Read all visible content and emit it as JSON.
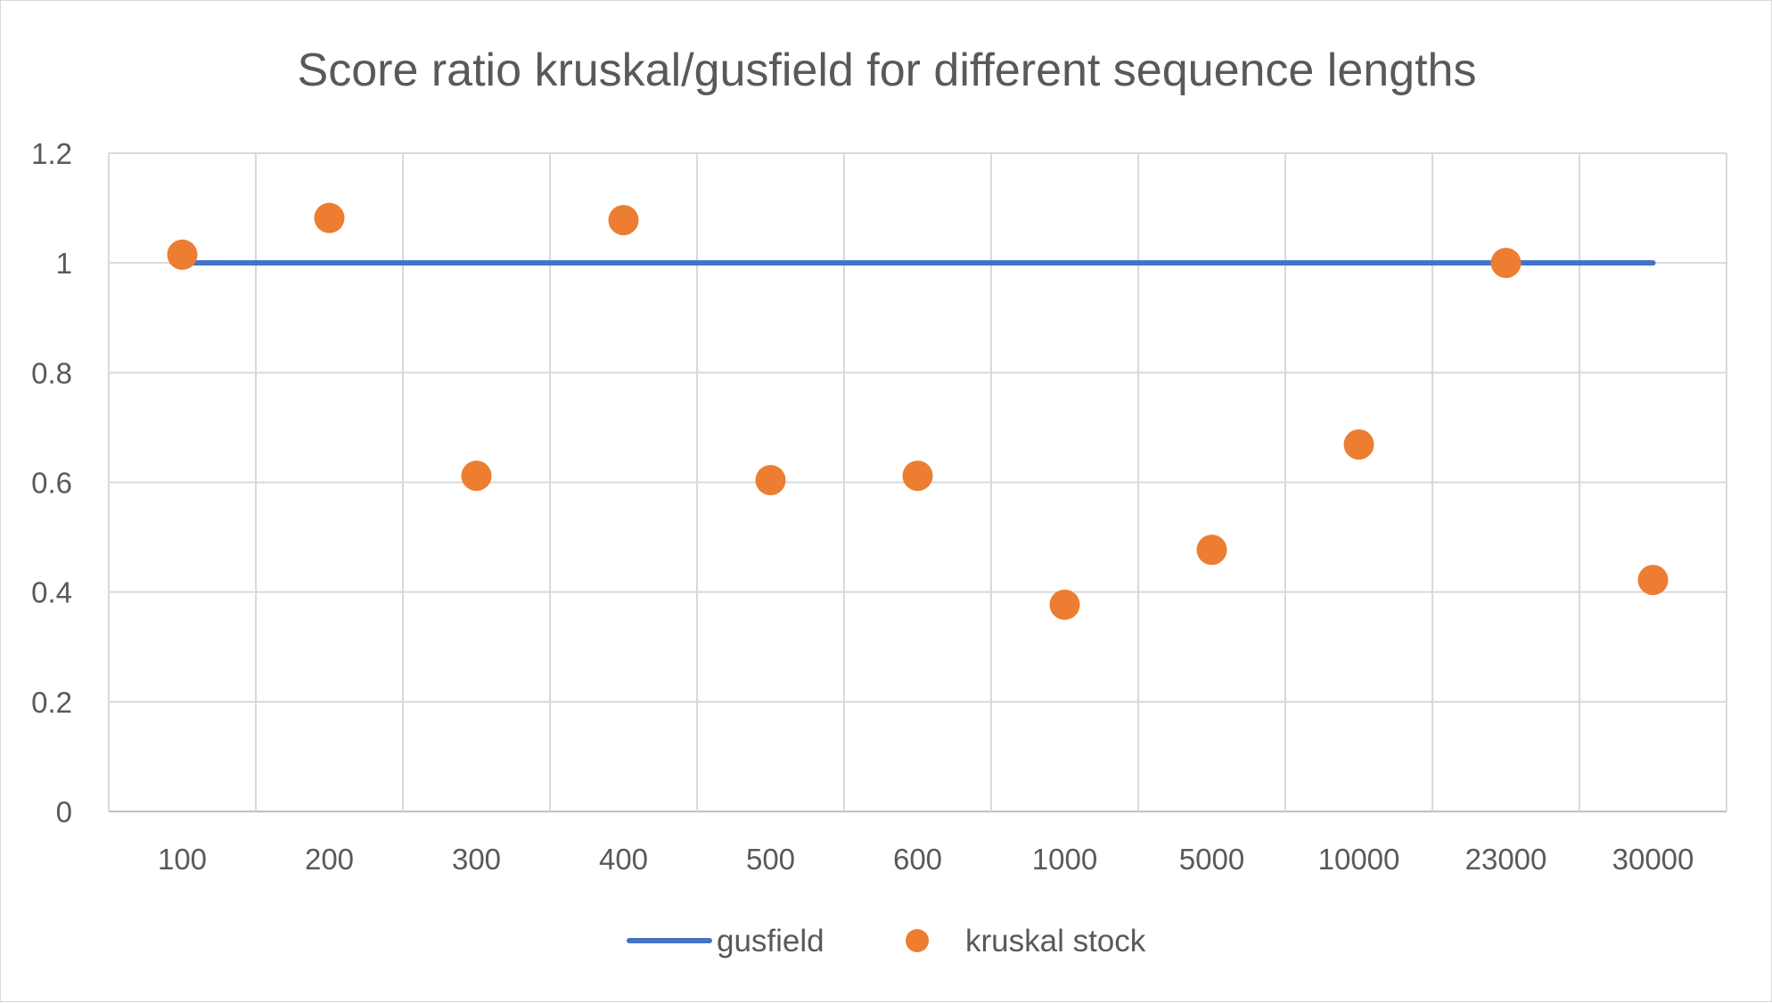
{
  "chart_data": {
    "type": "line",
    "title": "Score ratio kruskal/gusfield for different sequence lengths",
    "xlabel": "",
    "ylabel": "",
    "categories": [
      "100",
      "200",
      "300",
      "400",
      "500",
      "600",
      "1000",
      "5000",
      "10000",
      "23000",
      "30000"
    ],
    "ylim": [
      0,
      1.2
    ],
    "yticks": [
      "0",
      "0.2",
      "0.4",
      "0.6",
      "0.8",
      "1",
      "1.2"
    ],
    "grid": true,
    "legend_position": "bottom",
    "series": [
      {
        "name": "gusfield",
        "style": "line",
        "color": "#4472C4",
        "values": [
          1,
          1,
          1,
          1,
          1,
          1,
          1,
          1,
          1,
          1,
          1
        ]
      },
      {
        "name": "kruskal stock",
        "style": "markers",
        "color": "#ED7D31",
        "values": [
          1.015,
          1.082,
          0.612,
          1.078,
          0.604,
          0.612,
          0.377,
          0.477,
          0.669,
          1.0,
          0.422
        ]
      }
    ]
  }
}
